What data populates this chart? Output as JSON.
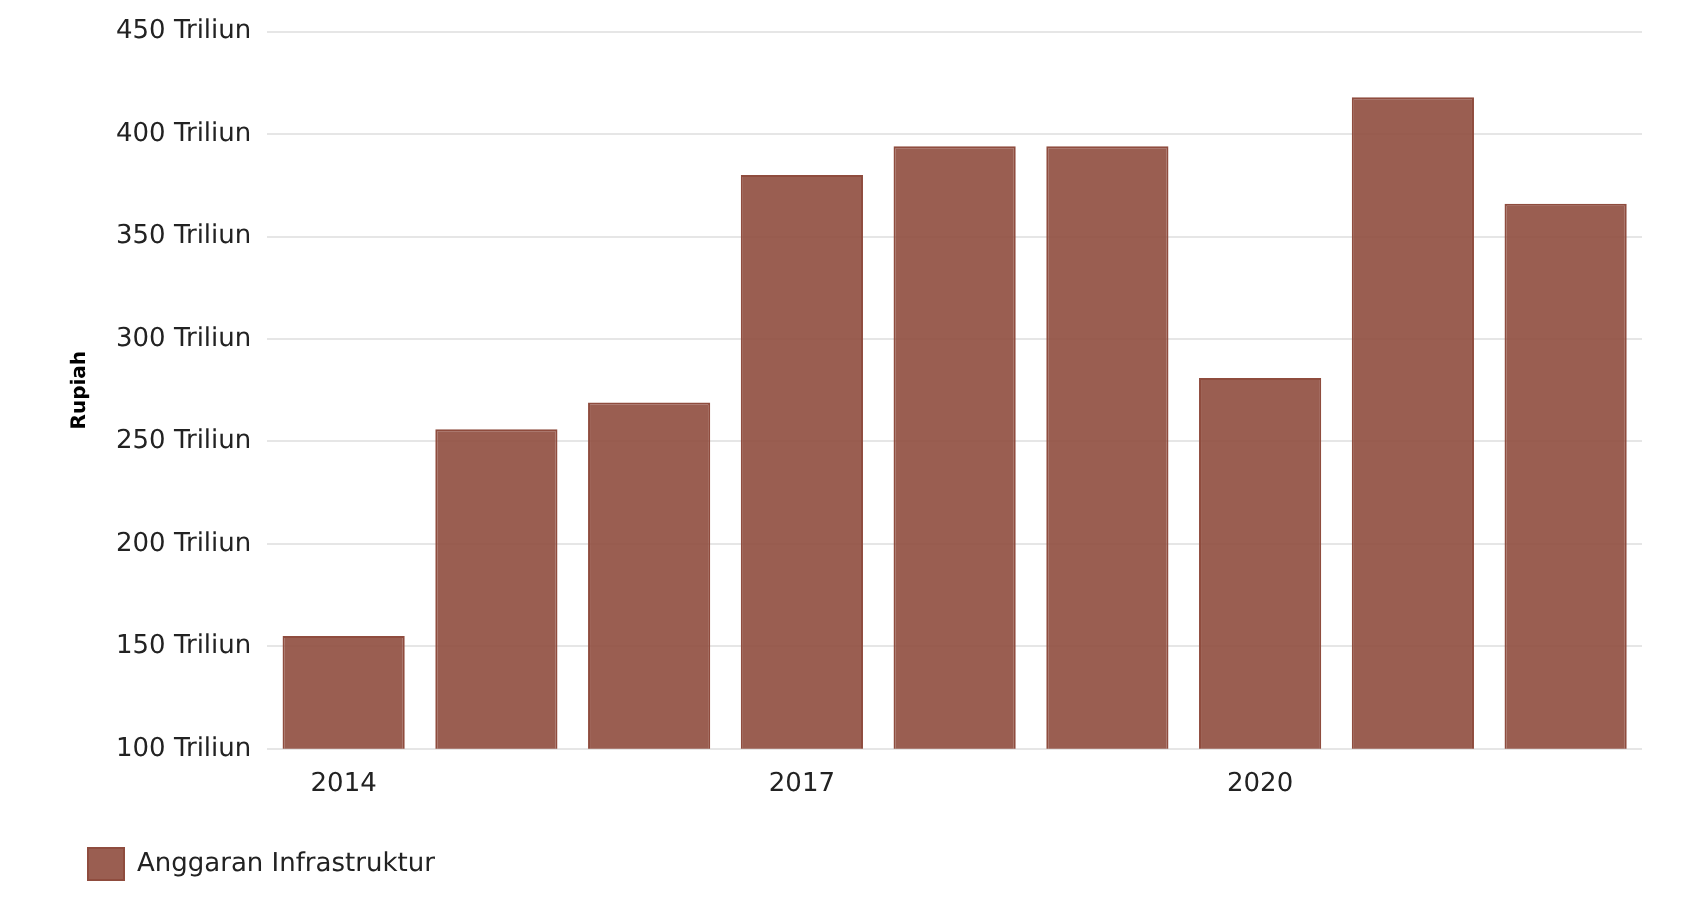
{
  "chart_data": {
    "type": "bar",
    "ylabel": "Rupiah",
    "categories": [
      "2014",
      null,
      null,
      "2017",
      null,
      null,
      "2020",
      null,
      null
    ],
    "series": [
      {
        "name": "Anggaran Infrastruktur",
        "color": "#8f4c3e",
        "values": [
          155,
          256,
          269,
          380,
          394,
          394,
          281,
          418,
          366
        ]
      }
    ],
    "ylim": [
      100,
      450
    ],
    "yticks": [
      {
        "value": 100,
        "label": "100 Triliun"
      },
      {
        "value": 150,
        "label": "150 Triliun"
      },
      {
        "value": 200,
        "label": "200 Triliun"
      },
      {
        "value": 250,
        "label": "250 Triliun"
      },
      {
        "value": 300,
        "label": "300 Triliun"
      },
      {
        "value": 350,
        "label": "350 Triliun"
      },
      {
        "value": 400,
        "label": "400 Triliun"
      },
      {
        "value": 450,
        "label": "450 Triliun"
      }
    ],
    "grid": "y",
    "legend": "bottom left"
  }
}
